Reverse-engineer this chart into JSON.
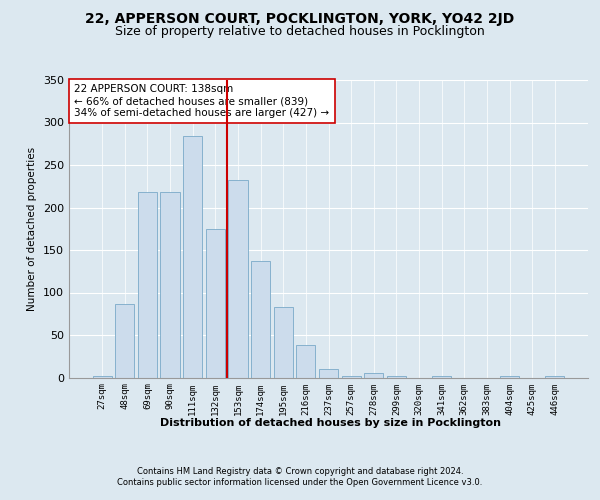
{
  "title_line1": "22, APPERSON COURT, POCKLINGTON, YORK, YO42 2JD",
  "title_line2": "Size of property relative to detached houses in Pocklington",
  "xlabel": "Distribution of detached houses by size in Pocklington",
  "ylabel": "Number of detached properties",
  "footer1": "Contains HM Land Registry data © Crown copyright and database right 2024.",
  "footer2": "Contains public sector information licensed under the Open Government Licence v3.0.",
  "bar_labels": [
    "27sqm",
    "48sqm",
    "69sqm",
    "90sqm",
    "111sqm",
    "132sqm",
    "153sqm",
    "174sqm",
    "195sqm",
    "216sqm",
    "237sqm",
    "257sqm",
    "278sqm",
    "299sqm",
    "320sqm",
    "341sqm",
    "362sqm",
    "383sqm",
    "404sqm",
    "425sqm",
    "446sqm"
  ],
  "bar_values": [
    2,
    86,
    218,
    218,
    284,
    175,
    232,
    137,
    83,
    38,
    10,
    2,
    5,
    2,
    0,
    2,
    0,
    0,
    2,
    0,
    2
  ],
  "bar_color": "#ccdcec",
  "bar_edgecolor": "#7aaac8",
  "vline_x": 5.5,
  "vline_color": "#cc0000",
  "annotation_text": "22 APPERSON COURT: 138sqm\n← 66% of detached houses are smaller (839)\n34% of semi-detached houses are larger (427) →",
  "annotation_box_color": "#ffffff",
  "annotation_box_edgecolor": "#cc0000",
  "ylim": [
    0,
    350
  ],
  "yticks": [
    0,
    50,
    100,
    150,
    200,
    250,
    300,
    350
  ],
  "background_color": "#dce8f0",
  "plot_background": "#dce8f0",
  "title_fontsize": 10,
  "subtitle_fontsize": 9,
  "grid_color": "#ffffff",
  "num_bars": 21
}
